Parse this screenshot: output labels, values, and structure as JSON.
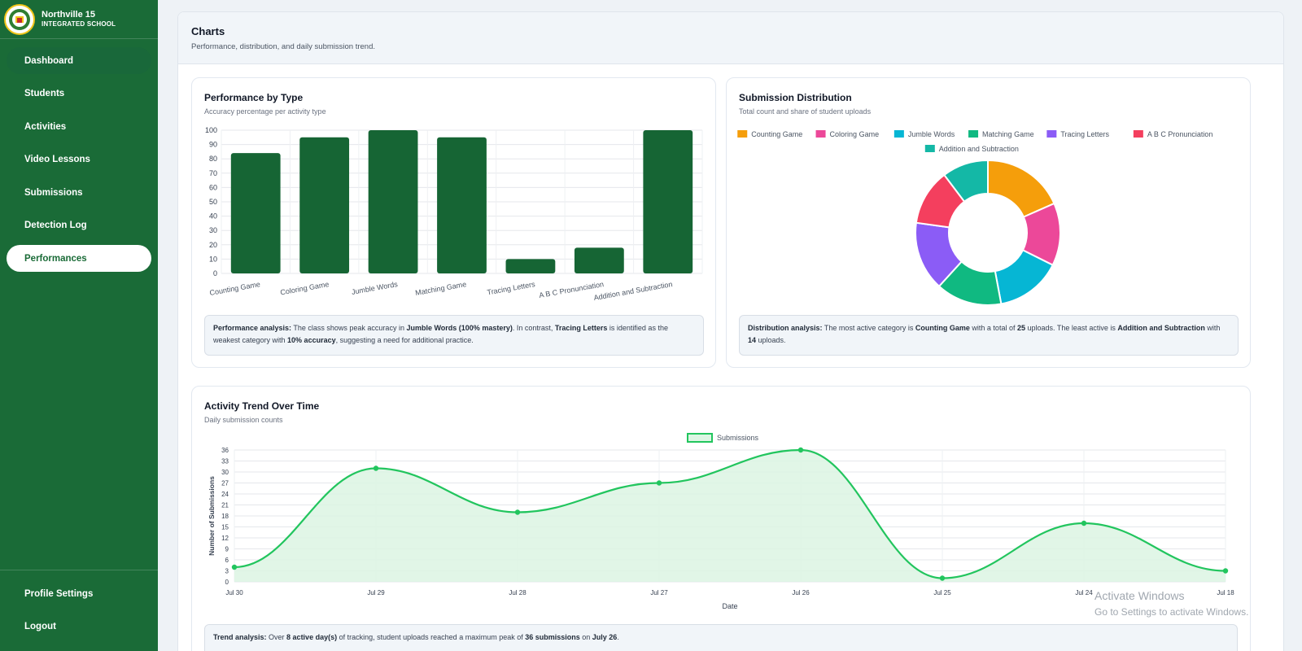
{
  "sidebar": {
    "brand_name": "Northville 15",
    "brand_sub": "INTEGRATED SCHOOL",
    "items": [
      {
        "label": "Dashboard"
      },
      {
        "label": "Students"
      },
      {
        "label": "Activities"
      },
      {
        "label": "Video Lessons"
      },
      {
        "label": "Submissions"
      },
      {
        "label": "Detection Log"
      },
      {
        "label": "Performances"
      }
    ],
    "bottom": [
      {
        "label": "Profile Settings"
      },
      {
        "label": "Logout"
      }
    ]
  },
  "header": {
    "title": "Charts",
    "subtitle": "Performance, distribution, and daily submission trend."
  },
  "performance": {
    "title": "Performance by Type",
    "subtitle": "Accuracy percentage per activity type",
    "analysis": {
      "label": "Performance analysis:",
      "t1": " The class shows peak accuracy in ",
      "b1": "Jumble Words (100% mastery)",
      "t2": ". In contrast, ",
      "b2": "Tracing Letters",
      "t3": " is identified as the weakest category with ",
      "b3": "10% accuracy",
      "t4": ", suggesting a need for additional practice."
    }
  },
  "distribution": {
    "title": "Submission Distribution",
    "subtitle": "Total count and share of student uploads",
    "analysis": {
      "label": "Distribution analysis:",
      "t1": " The most active category is ",
      "b1": "Counting Game",
      "t2": " with a total of ",
      "b2": "25",
      "t3": " uploads. The least active is ",
      "b3": "Addition and Subtraction",
      "t4": " with ",
      "b4": "14",
      "t5": " uploads."
    }
  },
  "trend": {
    "title": "Activity Trend Over Time",
    "subtitle": "Daily submission counts",
    "analysis": {
      "label": "Trend analysis:",
      "t1": " Over ",
      "b1": "8 active day(s)",
      "t2": " of tracking, student uploads reached a maximum peak of ",
      "b2": "36 submissions",
      "t3": " on ",
      "b3": "July 26",
      "t4": "."
    }
  },
  "watermark": {
    "line1": "Activate Windows",
    "line2": "Go to Settings to activate Windows."
  },
  "colors": {
    "sidebar": "#1a6b37",
    "bar": "#166534",
    "line": "#22c55e",
    "line_fill": "#dcf5e3"
  },
  "chart_data": [
    {
      "type": "bar",
      "categories": [
        "Counting Game",
        "Coloring Game",
        "Jumble Words",
        "Matching Game",
        "Tracing Letters",
        "A B C Pronunciation",
        "Addition and Subtraction"
      ],
      "values": [
        84,
        95,
        100,
        95,
        10,
        18,
        100
      ],
      "ylim": [
        0,
        100
      ],
      "yticks": [
        0,
        10,
        20,
        30,
        40,
        50,
        60,
        70,
        80,
        90,
        100
      ],
      "grid": true,
      "legend": "none",
      "color": "#166534"
    },
    {
      "type": "pie",
      "donut": true,
      "legend": "top",
      "labels": [
        "Counting Game",
        "Coloring Game",
        "Jumble Words",
        "Matching Game",
        "Tracing Letters",
        "A B C Pronunciation",
        "Addition and Subtraction"
      ],
      "values": [
        25,
        19,
        20,
        20,
        21,
        17,
        14
      ],
      "colors": [
        "#f59e0b",
        "#ec4899",
        "#06b6d4",
        "#10b981",
        "#8b5cf6",
        "#f43f5e",
        "#14b8a6"
      ]
    },
    {
      "type": "area",
      "x": [
        "Jul 30",
        "Jul 29",
        "Jul 28",
        "Jul 27",
        "Jul 26",
        "Jul 25",
        "Jul 24",
        "Jul 18"
      ],
      "series": [
        {
          "name": "Submissions",
          "values": [
            4,
            31,
            19,
            27,
            36,
            1,
            16,
            3
          ]
        }
      ],
      "xlabel": "Date",
      "ylabel": "Number of Submissions",
      "ylim": [
        0,
        36
      ],
      "yticks": [
        0,
        3,
        6,
        9,
        12,
        15,
        18,
        21,
        24,
        27,
        30,
        33,
        36
      ],
      "grid": true,
      "legend": "top"
    }
  ]
}
